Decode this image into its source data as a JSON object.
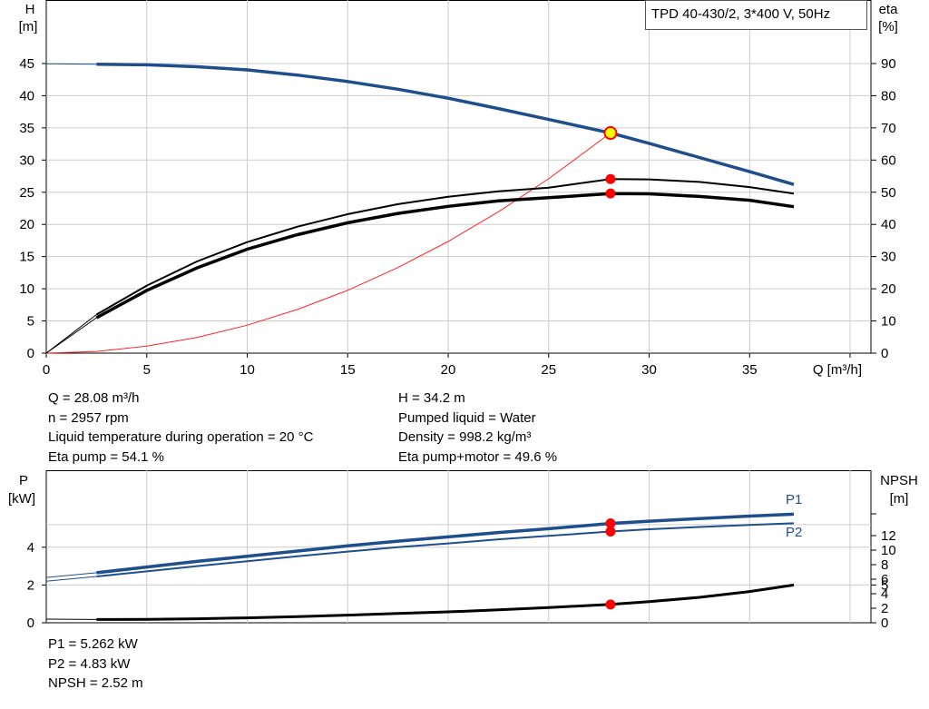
{
  "colors": {
    "head": "#1f4e8c",
    "power": "#1f4e8c",
    "efficiency": "#000000",
    "npsh": "#000000",
    "system": "#ff2222",
    "marker": "#ff0000",
    "duty_marker": "#ffff00",
    "grid": "#cccccc"
  },
  "chart_data": [
    {
      "type": "line",
      "title": "TPD 40-430/2, 3*400 V, 50Hz",
      "xlabel": "Q [m³/h]",
      "ylabel_left": [
        "H",
        "[m]"
      ],
      "ylabel_right": [
        "eta",
        "[%]"
      ],
      "xlim": [
        0,
        40
      ],
      "ylim_left": [
        0,
        45
      ],
      "ylim_right": [
        0,
        90
      ],
      "x_ticks": [
        0,
        5,
        10,
        15,
        20,
        25,
        30,
        35
      ],
      "y_ticks_left": [
        0,
        5,
        10,
        15,
        20,
        25,
        30,
        35,
        40,
        45
      ],
      "y_ticks_right": [
        0,
        10,
        20,
        30,
        40,
        50,
        60,
        70,
        80,
        90
      ],
      "grid": true,
      "series": [
        {
          "role": "head",
          "axis": "left",
          "x": [
            2.5,
            5,
            7.5,
            10,
            12.5,
            15,
            17.5,
            20,
            22.5,
            25,
            28.08,
            30,
            32.5,
            35,
            37.2
          ],
          "y": [
            44.9,
            44.8,
            44.5,
            44.0,
            43.2,
            42.2,
            41.0,
            39.6,
            38.0,
            36.3,
            34.2,
            32.6,
            30.4,
            28.2,
            26.2
          ]
        },
        {
          "role": "head-extension",
          "axis": "left",
          "x": [
            0,
            2.5
          ],
          "y": [
            44.95,
            44.9
          ]
        },
        {
          "role": "eta-pump",
          "axis": "right",
          "x": [
            2.5,
            5,
            7.5,
            10,
            12.5,
            15,
            17.5,
            20,
            22.5,
            25,
            28.08,
            30,
            32.5,
            35,
            37.2
          ],
          "y": [
            12,
            21,
            28.5,
            34.5,
            39.3,
            43.2,
            46.3,
            48.6,
            50.3,
            51.4,
            54.1,
            54.0,
            53.2,
            51.6,
            49.6
          ]
        },
        {
          "role": "eta-pump-motor",
          "axis": "right",
          "x": [
            2.5,
            5,
            7.5,
            10,
            12.5,
            15,
            17.5,
            20,
            22.5,
            25,
            28.08,
            30,
            32.5,
            35,
            37.2
          ],
          "y": [
            11,
            19.5,
            26.5,
            32.3,
            36.8,
            40.5,
            43.4,
            45.6,
            47.3,
            48.3,
            49.6,
            49.5,
            48.7,
            47.5,
            45.5
          ]
        },
        {
          "role": "eta-extension",
          "axis": "right",
          "x": [
            0,
            2.5
          ],
          "y": [
            0,
            12
          ]
        },
        {
          "role": "system-curve",
          "axis": "left",
          "x": [
            0,
            2.5,
            5,
            7.5,
            10,
            12.5,
            15,
            17.5,
            20,
            22.5,
            25,
            28.08
          ],
          "y": [
            0,
            0.27,
            1.08,
            2.44,
            4.34,
            6.78,
            9.76,
            13.3,
            17.35,
            21.96,
            27.1,
            34.2
          ]
        }
      ],
      "markers": [
        {
          "axis": "left",
          "x": 28.08,
          "y": 34.2,
          "kind": "duty"
        },
        {
          "axis": "right",
          "x": 28.08,
          "y": 54.1,
          "kind": "point"
        },
        {
          "axis": "right",
          "x": 28.08,
          "y": 49.6,
          "kind": "point"
        }
      ]
    },
    {
      "type": "line",
      "ylabel_left": [
        "P",
        "[kW]"
      ],
      "ylabel_right": [
        "NPSH",
        "[m]"
      ],
      "xlim": [
        0,
        40
      ],
      "ylim_left": [
        0,
        6
      ],
      "y_ticks_left": [
        0,
        2,
        4
      ],
      "y_ticks_right": [
        0,
        2,
        4,
        6,
        8,
        10,
        12
      ],
      "right_tick_values_m": [
        0,
        2,
        4,
        5.2,
        6,
        8,
        10,
        12
      ],
      "ylim_right": [
        0,
        14
      ],
      "grid": true,
      "series": [
        {
          "name": "P1",
          "axis": "left",
          "x": [
            2.5,
            5,
            7.5,
            10,
            12.5,
            15,
            17.5,
            20,
            22.5,
            25,
            28.08,
            30,
            32.5,
            35,
            37.2
          ],
          "y": [
            2.65,
            2.95,
            3.25,
            3.52,
            3.8,
            4.07,
            4.32,
            4.55,
            4.78,
            4.98,
            5.262,
            5.38,
            5.52,
            5.65,
            5.75
          ]
        },
        {
          "name": "P2",
          "axis": "left",
          "x": [
            2.5,
            5,
            7.5,
            10,
            12.5,
            15,
            17.5,
            20,
            22.5,
            25,
            28.08,
            30,
            32.5,
            35,
            37.2
          ],
          "y": [
            2.45,
            2.72,
            3.0,
            3.26,
            3.52,
            3.77,
            4.0,
            4.2,
            4.42,
            4.6,
            4.83,
            4.95,
            5.07,
            5.18,
            5.27
          ]
        },
        {
          "role": "p1-extension",
          "axis": "left",
          "x": [
            0,
            2.5
          ],
          "y": [
            2.4,
            2.65
          ]
        },
        {
          "role": "p2-extension",
          "axis": "left",
          "x": [
            0,
            2.5
          ],
          "y": [
            2.2,
            2.45
          ]
        },
        {
          "role": "npsh",
          "axis": "right",
          "x": [
            0,
            2.5,
            5,
            7.5,
            10,
            12.5,
            15,
            17.5,
            20,
            22.5,
            25,
            28.08,
            30,
            32.5,
            35,
            37.2
          ],
          "y": [
            0.5,
            0.45,
            0.48,
            0.55,
            0.68,
            0.85,
            1.05,
            1.27,
            1.5,
            1.77,
            2.1,
            2.52,
            2.9,
            3.5,
            4.3,
            5.2
          ]
        }
      ],
      "series_labels": [
        "P1",
        "P2"
      ],
      "markers": [
        {
          "axis": "left",
          "x": 28.08,
          "y": 5.262
        },
        {
          "axis": "left",
          "x": 28.08,
          "y": 4.83
        },
        {
          "axis": "right",
          "x": 28.08,
          "y": 2.52
        }
      ]
    }
  ],
  "info": {
    "left": [
      "Q = 28.08 m³/h",
      "n = 2957 rpm",
      "Liquid temperature during operation = 20 °C",
      "Eta pump = 54.1 %"
    ],
    "right": [
      "H = 34.2 m",
      "Pumped liquid = Water",
      "Density = 998.2 kg/m³",
      "Eta pump+motor = 49.6 %"
    ],
    "bottom": [
      "P1 = 5.262 kW",
      "P2 = 4.83 kW",
      "NPSH = 2.52 m"
    ]
  }
}
